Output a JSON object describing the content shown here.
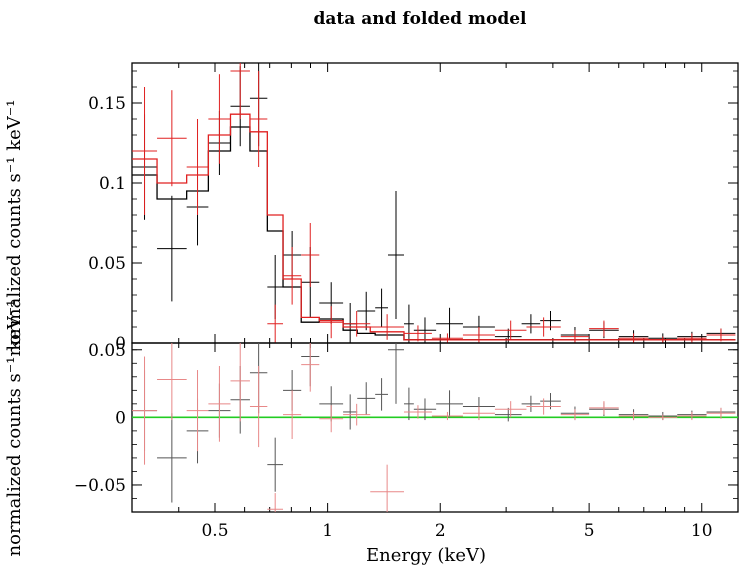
{
  "chart_data": {
    "type": "scatter",
    "title": "data and folded model",
    "xlabel": "Energy (keV)",
    "x_scale": "log",
    "xlim": [
      0.3,
      12.5
    ],
    "x_ticks": [
      {
        "value": 0.5,
        "label": "0.5"
      },
      {
        "value": 1,
        "label": "1"
      },
      {
        "value": 2,
        "label": "2"
      },
      {
        "value": 5,
        "label": "5"
      },
      {
        "value": 10,
        "label": "10"
      }
    ],
    "top_panel": {
      "ylabel": "normalized counts s⁻¹ keV⁻¹",
      "ylim": [
        0,
        0.175
      ],
      "y_ticks": [
        {
          "value": 0,
          "label": "0"
        },
        {
          "value": 0.05,
          "label": "0.05"
        },
        {
          "value": 0.1,
          "label": "0.1"
        },
        {
          "value": 0.15,
          "label": "0.15"
        }
      ],
      "series": [
        {
          "color": "#000000",
          "points": [
            {
              "x0": 0.3,
              "x1": 0.35,
              "y": 0.11,
              "yerr": 0.033
            },
            {
              "x0": 0.35,
              "x1": 0.42,
              "y": 0.059,
              "yerr": 0.033
            },
            {
              "x0": 0.42,
              "x1": 0.48,
              "y": 0.085,
              "yerr": 0.024
            },
            {
              "x0": 0.48,
              "x1": 0.55,
              "y": 0.125,
              "yerr": 0.02
            },
            {
              "x0": 0.55,
              "x1": 0.62,
              "y": 0.148,
              "yerr": 0.025
            },
            {
              "x0": 0.62,
              "x1": 0.69,
              "y": 0.153,
              "yerr": 0.03
            },
            {
              "x0": 0.69,
              "x1": 0.76,
              "y": 0.035,
              "yerr": 0.02
            },
            {
              "x0": 0.76,
              "x1": 0.85,
              "y": 0.055,
              "yerr": 0.015
            },
            {
              "x0": 0.85,
              "x1": 0.95,
              "y": 0.038,
              "yerr": 0.022
            },
            {
              "x0": 0.95,
              "x1": 1.1,
              "y": 0.025,
              "yerr": 0.013
            },
            {
              "x0": 1.1,
              "x1": 1.2,
              "y": 0.012,
              "yerr": 0.013
            },
            {
              "x0": 1.2,
              "x1": 1.34,
              "y": 0.02,
              "yerr": 0.012
            },
            {
              "x0": 1.34,
              "x1": 1.45,
              "y": 0.022,
              "yerr": 0.012
            },
            {
              "x0": 1.45,
              "x1": 1.6,
              "y": 0.055,
              "yerr": 0.04
            },
            {
              "x0": 1.6,
              "x1": 1.7,
              "y": 0.012,
              "yerr": 0.012
            },
            {
              "x0": 1.7,
              "x1": 1.95,
              "y": 0.008,
              "yerr": 0.008
            },
            {
              "x0": 1.95,
              "x1": 2.3,
              "y": 0.012,
              "yerr": 0.01
            },
            {
              "x0": 2.3,
              "x1": 2.8,
              "y": 0.01,
              "yerr": 0.007
            },
            {
              "x0": 2.8,
              "x1": 3.3,
              "y": 0.004,
              "yerr": 0.005
            },
            {
              "x0": 3.3,
              "x1": 3.7,
              "y": 0.012,
              "yerr": 0.006
            },
            {
              "x0": 3.7,
              "x1": 4.2,
              "y": 0.014,
              "yerr": 0.006
            },
            {
              "x0": 4.2,
              "x1": 5.0,
              "y": 0.005,
              "yerr": 0.005
            },
            {
              "x0": 5.0,
              "x1": 6.0,
              "y": 0.008,
              "yerr": 0.005
            },
            {
              "x0": 6.0,
              "x1": 7.2,
              "y": 0.004,
              "yerr": 0.004
            },
            {
              "x0": 7.2,
              "x1": 8.6,
              "y": 0.003,
              "yerr": 0.003
            },
            {
              "x0": 8.6,
              "x1": 10.3,
              "y": 0.004,
              "yerr": 0.003
            },
            {
              "x0": 10.3,
              "x1": 12.3,
              "y": 0.006,
              "yerr": 0.003
            }
          ],
          "model": [
            {
              "x0": 0.3,
              "x1": 0.35,
              "y": 0.105
            },
            {
              "x0": 0.35,
              "x1": 0.42,
              "y": 0.09
            },
            {
              "x0": 0.42,
              "x1": 0.48,
              "y": 0.095
            },
            {
              "x0": 0.48,
              "x1": 0.55,
              "y": 0.12
            },
            {
              "x0": 0.55,
              "x1": 0.62,
              "y": 0.135
            },
            {
              "x0": 0.62,
              "x1": 0.69,
              "y": 0.12
            },
            {
              "x0": 0.69,
              "x1": 0.76,
              "y": 0.07
            },
            {
              "x0": 0.76,
              "x1": 0.85,
              "y": 0.035
            },
            {
              "x0": 0.85,
              "x1": 0.95,
              "y": 0.013
            },
            {
              "x0": 0.95,
              "x1": 1.1,
              "y": 0.015
            },
            {
              "x0": 1.1,
              "x1": 1.2,
              "y": 0.008
            },
            {
              "x0": 1.2,
              "x1": 1.34,
              "y": 0.006
            },
            {
              "x0": 1.34,
              "x1": 1.6,
              "y": 0.005
            },
            {
              "x0": 1.6,
              "x1": 12.3,
              "y": 0.002
            }
          ]
        },
        {
          "color": "#e02020",
          "points": [
            {
              "x0": 0.3,
              "x1": 0.35,
              "y": 0.12,
              "yerr": 0.04
            },
            {
              "x0": 0.35,
              "x1": 0.42,
              "y": 0.128,
              "yerr": 0.03
            },
            {
              "x0": 0.42,
              "x1": 0.48,
              "y": 0.11,
              "yerr": 0.03
            },
            {
              "x0": 0.48,
              "x1": 0.55,
              "y": 0.14,
              "yerr": 0.028
            },
            {
              "x0": 0.55,
              "x1": 0.62,
              "y": 0.17,
              "yerr": 0.03
            },
            {
              "x0": 0.62,
              "x1": 0.69,
              "y": 0.14,
              "yerr": 0.03
            },
            {
              "x0": 0.69,
              "x1": 0.76,
              "y": 0.012,
              "yerr": 0.012
            },
            {
              "x0": 0.76,
              "x1": 0.85,
              "y": 0.042,
              "yerr": 0.018
            },
            {
              "x0": 0.85,
              "x1": 0.95,
              "y": 0.055,
              "yerr": 0.02
            },
            {
              "x0": 0.95,
              "x1": 1.1,
              "y": 0.013,
              "yerr": 0.01
            },
            {
              "x0": 1.1,
              "x1": 1.3,
              "y": 0.012,
              "yerr": 0.008
            },
            {
              "x0": 1.3,
              "x1": 1.6,
              "y": 0.01,
              "yerr": 0.008
            },
            {
              "x0": 1.6,
              "x1": 1.9,
              "y": 0.006,
              "yerr": 0.005
            },
            {
              "x0": 1.9,
              "x1": 2.3,
              "y": 0.003,
              "yerr": 0.003
            },
            {
              "x0": 2.3,
              "x1": 2.8,
              "y": 0.005,
              "yerr": 0.005
            },
            {
              "x0": 2.8,
              "x1": 3.4,
              "y": 0.008,
              "yerr": 0.006
            },
            {
              "x0": 3.4,
              "x1": 4.2,
              "y": 0.01,
              "yerr": 0.006
            },
            {
              "x0": 4.2,
              "x1": 5.0,
              "y": 0.004,
              "yerr": 0.004
            },
            {
              "x0": 5.0,
              "x1": 6.0,
              "y": 0.009,
              "yerr": 0.005
            },
            {
              "x0": 6.0,
              "x1": 7.2,
              "y": 0.003,
              "yerr": 0.003
            },
            {
              "x0": 7.2,
              "x1": 8.6,
              "y": 0.002,
              "yerr": 0.002
            },
            {
              "x0": 8.6,
              "x1": 10.3,
              "y": 0.003,
              "yerr": 0.003
            },
            {
              "x0": 10.3,
              "x1": 12.3,
              "y": 0.005,
              "yerr": 0.004
            }
          ],
          "model": [
            {
              "x0": 0.3,
              "x1": 0.35,
              "y": 0.115
            },
            {
              "x0": 0.35,
              "x1": 0.42,
              "y": 0.1
            },
            {
              "x0": 0.42,
              "x1": 0.48,
              "y": 0.105
            },
            {
              "x0": 0.48,
              "x1": 0.55,
              "y": 0.13
            },
            {
              "x0": 0.55,
              "x1": 0.62,
              "y": 0.143
            },
            {
              "x0": 0.62,
              "x1": 0.69,
              "y": 0.132
            },
            {
              "x0": 0.69,
              "x1": 0.76,
              "y": 0.08
            },
            {
              "x0": 0.76,
              "x1": 0.85,
              "y": 0.04
            },
            {
              "x0": 0.85,
              "x1": 0.95,
              "y": 0.016
            },
            {
              "x0": 0.95,
              "x1": 1.1,
              "y": 0.014
            },
            {
              "x0": 1.1,
              "x1": 1.3,
              "y": 0.01
            },
            {
              "x0": 1.3,
              "x1": 1.6,
              "y": 0.007
            },
            {
              "x0": 1.6,
              "x1": 12.3,
              "y": 0.002
            }
          ]
        }
      ]
    },
    "bottom_panel": {
      "ylabel": "normalized counts s⁻¹ keV⁻¹",
      "ylim": [
        -0.07,
        0.055
      ],
      "y_ticks": [
        {
          "value": -0.05,
          "label": "−0.05"
        },
        {
          "value": 0,
          "label": "0"
        },
        {
          "value": 0.05,
          "label": "0.05"
        }
      ],
      "reference_line": {
        "y": 0,
        "color": "#22cc22"
      },
      "series": [
        {
          "color": "#555555",
          "points": [
            {
              "x0": 0.3,
              "x1": 0.35,
              "y": 0.005,
              "yerr": 0.03
            },
            {
              "x0": 0.35,
              "x1": 0.42,
              "y": -0.03,
              "yerr": 0.033
            },
            {
              "x0": 0.42,
              "x1": 0.48,
              "y": -0.01,
              "yerr": 0.024
            },
            {
              "x0": 0.48,
              "x1": 0.55,
              "y": 0.005,
              "yerr": 0.02
            },
            {
              "x0": 0.55,
              "x1": 0.62,
              "y": 0.013,
              "yerr": 0.025
            },
            {
              "x0": 0.62,
              "x1": 0.69,
              "y": 0.033,
              "yerr": 0.03
            },
            {
              "x0": 0.69,
              "x1": 0.76,
              "y": -0.035,
              "yerr": 0.02
            },
            {
              "x0": 0.76,
              "x1": 0.85,
              "y": 0.02,
              "yerr": 0.015
            },
            {
              "x0": 0.85,
              "x1": 0.95,
              "y": 0.045,
              "yerr": 0.022
            },
            {
              "x0": 0.95,
              "x1": 1.1,
              "y": 0.01,
              "yerr": 0.013
            },
            {
              "x0": 1.1,
              "x1": 1.2,
              "y": 0.004,
              "yerr": 0.013
            },
            {
              "x0": 1.2,
              "x1": 1.34,
              "y": 0.014,
              "yerr": 0.012
            },
            {
              "x0": 1.34,
              "x1": 1.45,
              "y": 0.017,
              "yerr": 0.012
            },
            {
              "x0": 1.45,
              "x1": 1.6,
              "y": 0.05,
              "yerr": 0.04
            },
            {
              "x0": 1.6,
              "x1": 1.7,
              "y": 0.01,
              "yerr": 0.012
            },
            {
              "x0": 1.7,
              "x1": 1.95,
              "y": 0.006,
              "yerr": 0.008
            },
            {
              "x0": 1.95,
              "x1": 2.3,
              "y": 0.01,
              "yerr": 0.01
            },
            {
              "x0": 2.3,
              "x1": 2.8,
              "y": 0.008,
              "yerr": 0.007
            },
            {
              "x0": 2.8,
              "x1": 3.3,
              "y": 0.002,
              "yerr": 0.005
            },
            {
              "x0": 3.3,
              "x1": 3.7,
              "y": 0.01,
              "yerr": 0.006
            },
            {
              "x0": 3.7,
              "x1": 4.2,
              "y": 0.012,
              "yerr": 0.006
            },
            {
              "x0": 4.2,
              "x1": 5.0,
              "y": 0.003,
              "yerr": 0.005
            },
            {
              "x0": 5.0,
              "x1": 6.0,
              "y": 0.006,
              "yerr": 0.005
            },
            {
              "x0": 6.0,
              "x1": 7.2,
              "y": 0.002,
              "yerr": 0.004
            },
            {
              "x0": 7.2,
              "x1": 8.6,
              "y": 0.001,
              "yerr": 0.003
            },
            {
              "x0": 8.6,
              "x1": 10.3,
              "y": 0.002,
              "yerr": 0.003
            },
            {
              "x0": 10.3,
              "x1": 12.3,
              "y": 0.004,
              "yerr": 0.003
            }
          ]
        },
        {
          "color": "#e88888",
          "points": [
            {
              "x0": 0.3,
              "x1": 0.35,
              "y": 0.005,
              "yerr": 0.04
            },
            {
              "x0": 0.35,
              "x1": 0.42,
              "y": 0.028,
              "yerr": 0.03
            },
            {
              "x0": 0.42,
              "x1": 0.48,
              "y": 0.005,
              "yerr": 0.03
            },
            {
              "x0": 0.48,
              "x1": 0.55,
              "y": 0.01,
              "yerr": 0.028
            },
            {
              "x0": 0.55,
              "x1": 0.62,
              "y": 0.027,
              "yerr": 0.03
            },
            {
              "x0": 0.62,
              "x1": 0.69,
              "y": 0.008,
              "yerr": 0.03
            },
            {
              "x0": 0.69,
              "x1": 0.76,
              "y": -0.068,
              "yerr": 0.012
            },
            {
              "x0": 0.76,
              "x1": 0.85,
              "y": 0.002,
              "yerr": 0.018
            },
            {
              "x0": 0.85,
              "x1": 0.95,
              "y": 0.039,
              "yerr": 0.02
            },
            {
              "x0": 0.95,
              "x1": 1.1,
              "y": -0.001,
              "yerr": 0.01
            },
            {
              "x0": 1.1,
              "x1": 1.3,
              "y": 0.002,
              "yerr": 0.008
            },
            {
              "x0": 1.3,
              "x1": 1.6,
              "y": -0.055,
              "yerr": 0.02
            },
            {
              "x0": 1.6,
              "x1": 1.9,
              "y": 0.004,
              "yerr": 0.005
            },
            {
              "x0": 1.9,
              "x1": 2.3,
              "y": 0.001,
              "yerr": 0.003
            },
            {
              "x0": 2.3,
              "x1": 2.8,
              "y": 0.003,
              "yerr": 0.005
            },
            {
              "x0": 2.8,
              "x1": 3.4,
              "y": 0.006,
              "yerr": 0.006
            },
            {
              "x0": 3.4,
              "x1": 4.2,
              "y": 0.008,
              "yerr": 0.006
            },
            {
              "x0": 4.2,
              "x1": 5.0,
              "y": 0.002,
              "yerr": 0.004
            },
            {
              "x0": 5.0,
              "x1": 6.0,
              "y": 0.007,
              "yerr": 0.005
            },
            {
              "x0": 6.0,
              "x1": 7.2,
              "y": 0.001,
              "yerr": 0.003
            },
            {
              "x0": 7.2,
              "x1": 8.6,
              "y": 0.0,
              "yerr": 0.002
            },
            {
              "x0": 8.6,
              "x1": 10.3,
              "y": 0.001,
              "yerr": 0.003
            },
            {
              "x0": 10.3,
              "x1": 12.3,
              "y": 0.003,
              "yerr": 0.004
            }
          ]
        }
      ]
    }
  }
}
